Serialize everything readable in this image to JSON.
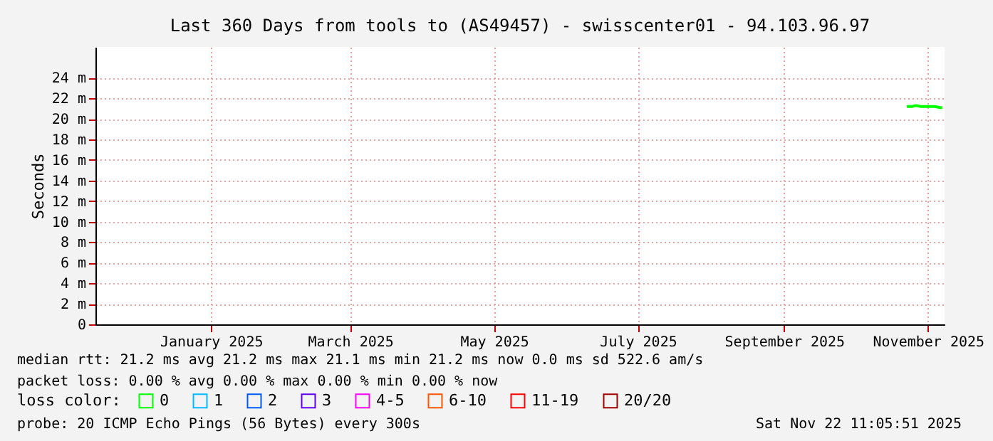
{
  "chart_data": {
    "type": "line",
    "title": "Last 360 Days from tools to (AS49457) - swisscenter01 - 94.103.96.97",
    "ylabel": "Seconds",
    "x": [
      "2025-11-06",
      "2025-11-08",
      "2025-11-10",
      "2025-11-12",
      "2025-11-14",
      "2025-11-16",
      "2025-11-18",
      "2025-11-20",
      "2025-11-21"
    ],
    "series": [
      {
        "name": "0",
        "color": "#00ff00",
        "values": [
          21.2,
          21.2,
          21.3,
          21.2,
          21.2,
          21.2,
          21.2,
          21.1,
          21.1
        ]
      },
      {
        "name": "1",
        "color": "#00bbff",
        "values": [
          null,
          null,
          null,
          null,
          null,
          null,
          null,
          null,
          null
        ]
      },
      {
        "name": "2",
        "color": "#0059ff",
        "values": [
          null,
          null,
          null,
          null,
          null,
          null,
          null,
          null,
          null
        ]
      },
      {
        "name": "3",
        "color": "#5e00ff",
        "values": [
          null,
          null,
          null,
          null,
          null,
          null,
          null,
          null,
          null
        ]
      },
      {
        "name": "4-5",
        "color": "#ff00ff",
        "values": [
          null,
          null,
          null,
          null,
          null,
          null,
          null,
          null,
          null
        ]
      },
      {
        "name": "6-10",
        "color": "#ff5500",
        "values": [
          null,
          null,
          null,
          null,
          null,
          null,
          null,
          null,
          null
        ]
      },
      {
        "name": "11-19",
        "color": "#ff0000",
        "values": [
          null,
          null,
          null,
          null,
          null,
          null,
          null,
          null,
          null
        ]
      },
      {
        "name": "20/20",
        "color": "#a10000",
        "values": [
          null,
          null,
          null,
          null,
          null,
          null,
          null,
          null,
          null
        ]
      }
    ],
    "legend_title": "loss color:",
    "legend": "bottom",
    "xlim": [
      "2024-11-27",
      "2025-11-22"
    ],
    "xticks": [
      {
        "value": "2025-01-15",
        "label": "January 2025"
      },
      {
        "value": "2025-03-15",
        "label": "March 2025"
      },
      {
        "value": "2025-05-15",
        "label": "May 2025"
      },
      {
        "value": "2025-07-15",
        "label": "July 2025"
      },
      {
        "value": "2025-09-15",
        "label": "September 2025"
      },
      {
        "value": "2025-11-15",
        "label": "November 2025"
      }
    ],
    "ylim": [
      0,
      27
    ],
    "yticks": [
      0,
      {
        "value": 2,
        "label": "2 m"
      },
      {
        "value": 4,
        "label": "4 m"
      },
      {
        "value": 6,
        "label": "6 m"
      },
      {
        "value": 8,
        "label": "8 m"
      },
      {
        "value": 10,
        "label": "10 m"
      },
      {
        "value": 12,
        "label": "12 m"
      },
      {
        "value": 14,
        "label": "14 m"
      },
      {
        "value": 16,
        "label": "16 m"
      },
      {
        "value": 18,
        "label": "18 m"
      },
      {
        "value": 20,
        "label": "20 m"
      },
      {
        "value": 22,
        "label": "22 m"
      },
      {
        "value": 24,
        "label": "24 m"
      }
    ],
    "grid": true,
    "marker": "none",
    "line_style": "solid",
    "annotations": [
      "median rtt:  21.2 ms avg  21.2 ms max  21.1 ms min  21.2 ms now  0.0 ms sd  522.6   am/s",
      "packet loss: 0.00 % avg  0.00 % max  0.00 % min  0.00 % now",
      "probe:       20 ICMP Echo Pings (56 Bytes) every 300s",
      "Sat Nov 22 11:05:51 2025"
    ]
  }
}
